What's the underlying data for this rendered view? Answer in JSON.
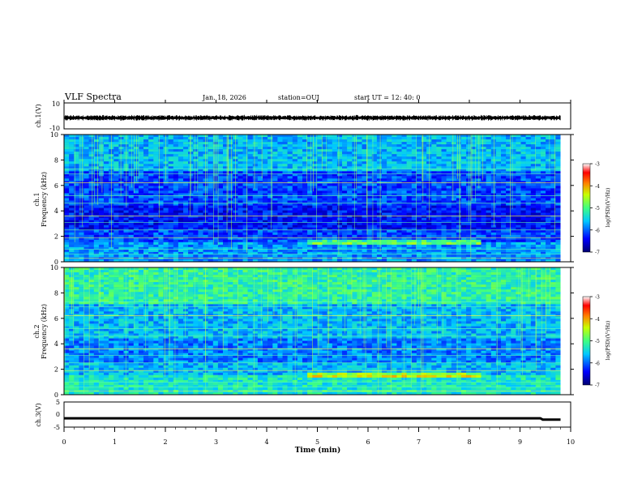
{
  "header": {
    "title": "VLF Spectra",
    "date": "Jan. 18, 2026",
    "station": "station=OUJ",
    "start": "start UT =  12: 40: 0"
  },
  "chart_data": [
    {
      "type": "line",
      "name": "ch1-waveform",
      "ylabel": "ch.1(V)",
      "ylim": [
        -10,
        10
      ],
      "ytick_labels": [
        "10",
        "-10"
      ],
      "x": [
        0,
        1,
        2,
        3,
        4,
        5,
        6,
        7,
        8,
        9,
        9.8
      ],
      "y": [
        -1.5,
        -1.6,
        -1.5,
        -1.7,
        -1.6,
        -1.5,
        -1.6,
        -1.5,
        -1.6,
        -1.5,
        -1.6
      ],
      "xlim": [
        0,
        10
      ]
    },
    {
      "type": "heatmap",
      "name": "ch1-spectrogram",
      "ylabel": "ch.1\nFrequency (kHz)",
      "ylim": [
        0,
        10
      ],
      "yticks": [
        0,
        2,
        4,
        6,
        8,
        10
      ],
      "xlim": [
        0,
        10
      ],
      "colorbar": {
        "label": "log(PSD)(V²/Hz)",
        "range": [
          -7,
          -3
        ],
        "ticks": [
          -3,
          -4,
          -5,
          -6,
          -7
        ]
      }
    },
    {
      "type": "heatmap",
      "name": "ch2-spectrogram",
      "ylabel": "ch.2\nFrequency (kHz)",
      "ylim": [
        0,
        10
      ],
      "yticks": [
        0,
        2,
        4,
        6,
        8,
        10
      ],
      "xlim": [
        0,
        10
      ],
      "colorbar": {
        "label": "log(PSD)(V²/Hz)",
        "range": [
          -7,
          -3
        ],
        "ticks": [
          -3,
          -4,
          -5,
          -6,
          -7
        ]
      }
    },
    {
      "type": "line",
      "name": "ch3-waveform",
      "ylabel": "ch.3(V)",
      "ylim": [
        -5,
        5
      ],
      "ytick_labels": [
        "5",
        "0",
        "-5"
      ],
      "x": [
        0,
        9.4,
        9.45,
        9.8
      ],
      "y": [
        -1.5,
        -1.5,
        -2.0,
        -2.0
      ],
      "xlim": [
        0,
        10
      ]
    }
  ],
  "xaxis": {
    "label": "Time (min)",
    "ticks": [
      "0",
      "1",
      "2",
      "3",
      "4",
      "5",
      "6",
      "7",
      "8",
      "9",
      "10"
    ]
  },
  "colors": {
    "background": "#ffffff",
    "axis": "#000000",
    "colormap": [
      "#00008f",
      "#0000ff",
      "#0080ff",
      "#00ffff",
      "#80ff80",
      "#ffff00",
      "#ff8000",
      "#ff0000",
      "#ffffff"
    ]
  }
}
